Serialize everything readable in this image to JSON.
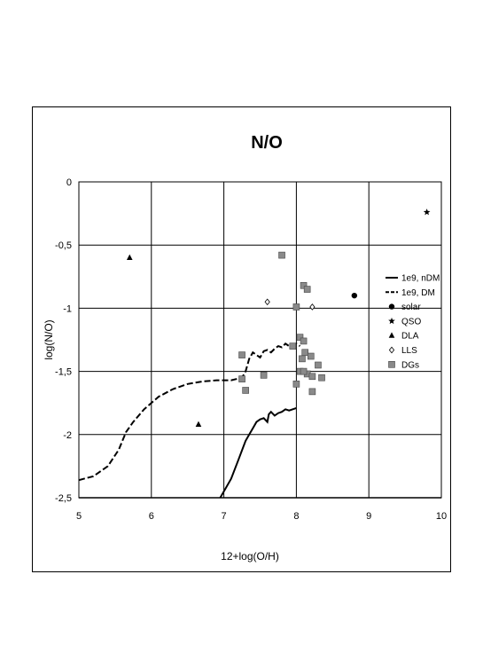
{
  "chart_data": {
    "type": "scatter",
    "title": "N/O",
    "xlabel": "12+log(O/H)",
    "ylabel": "log(N/O)",
    "xlim": [
      5,
      10
    ],
    "ylim": [
      -2.5,
      0
    ],
    "x_ticks": [
      "5",
      "6",
      "7",
      "8",
      "9",
      "10"
    ],
    "y_ticks": [
      "0",
      "-0,5",
      "-1",
      "-1,5",
      "-2",
      "-2,5"
    ],
    "grid": true,
    "legend_position": "right",
    "series": [
      {
        "name": "1e9, nDM",
        "kind": "line",
        "style": "solid",
        "x": [
          6.95,
          7.0,
          7.1,
          7.2,
          7.3,
          7.35,
          7.4,
          7.45,
          7.5,
          7.55,
          7.6,
          7.62,
          7.65,
          7.7,
          7.75,
          7.8,
          7.85,
          7.9,
          7.95,
          8.0
        ],
        "y": [
          -2.5,
          -2.45,
          -2.35,
          -2.2,
          -2.05,
          -2.0,
          -1.95,
          -1.9,
          -1.88,
          -1.87,
          -1.9,
          -1.84,
          -1.82,
          -1.85,
          -1.83,
          -1.82,
          -1.8,
          -1.81,
          -1.8,
          -1.79
        ]
      },
      {
        "name": "1e9, DM",
        "kind": "line",
        "style": "dashed",
        "x": [
          5.0,
          5.2,
          5.4,
          5.55,
          5.65,
          5.75,
          5.9,
          6.1,
          6.3,
          6.5,
          6.7,
          6.9,
          7.1,
          7.25,
          7.3,
          7.35,
          7.4,
          7.45,
          7.5,
          7.55,
          7.6,
          7.65,
          7.7,
          7.75,
          7.8,
          7.85,
          7.9,
          7.95,
          8.0,
          8.05
        ],
        "y": [
          -2.36,
          -2.33,
          -2.25,
          -2.12,
          -1.98,
          -1.9,
          -1.8,
          -1.7,
          -1.64,
          -1.6,
          -1.58,
          -1.57,
          -1.57,
          -1.55,
          -1.5,
          -1.4,
          -1.35,
          -1.37,
          -1.39,
          -1.34,
          -1.33,
          -1.35,
          -1.32,
          -1.3,
          -1.31,
          -1.28,
          -1.3,
          -1.29,
          -1.28,
          -1.3
        ]
      },
      {
        "name": "solar",
        "kind": "point",
        "marker": "circle",
        "points": [
          [
            8.8,
            -0.9
          ]
        ]
      },
      {
        "name": "QSO",
        "kind": "point",
        "marker": "star",
        "points": [
          [
            9.8,
            -0.24
          ]
        ]
      },
      {
        "name": "DLA",
        "kind": "point",
        "marker": "triangle",
        "points": [
          [
            5.7,
            -0.6
          ],
          [
            6.65,
            -1.92
          ]
        ]
      },
      {
        "name": "LLS",
        "kind": "point",
        "marker": "diamond",
        "points": [
          [
            7.6,
            -0.95
          ],
          [
            8.22,
            -0.99
          ]
        ]
      },
      {
        "name": "DGs",
        "kind": "point",
        "marker": "square",
        "points": [
          [
            7.8,
            -0.58
          ],
          [
            8.1,
            -0.82
          ],
          [
            8.15,
            -0.85
          ],
          [
            8.0,
            -0.99
          ],
          [
            8.05,
            -1.23
          ],
          [
            8.1,
            -1.26
          ],
          [
            7.95,
            -1.3
          ],
          [
            8.12,
            -1.35
          ],
          [
            8.08,
            -1.4
          ],
          [
            8.2,
            -1.38
          ],
          [
            8.3,
            -1.45
          ],
          [
            8.05,
            -1.5
          ],
          [
            8.15,
            -1.52
          ],
          [
            8.22,
            -1.54
          ],
          [
            8.35,
            -1.55
          ],
          [
            8.0,
            -1.6
          ],
          [
            7.25,
            -1.56
          ],
          [
            7.55,
            -1.53
          ],
          [
            7.3,
            -1.65
          ],
          [
            8.22,
            -1.66
          ],
          [
            7.25,
            -1.37
          ],
          [
            8.1,
            -1.5
          ]
        ]
      }
    ]
  }
}
